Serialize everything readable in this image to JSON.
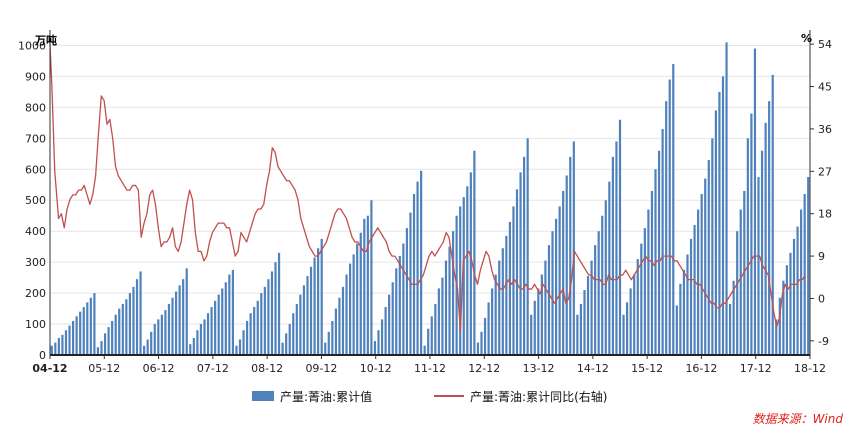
{
  "chart_data": {
    "type": "bar",
    "left_unit": "万吨",
    "right_unit": "%",
    "left_ticks": [
      "0",
      "100",
      "200",
      "300",
      "400",
      "500",
      "600",
      "700",
      "800",
      "900",
      "1000"
    ],
    "right_ticks": [
      "-9",
      "0",
      "9",
      "18",
      "27",
      "36",
      "45",
      "54"
    ],
    "ylim_left": [
      0,
      1050
    ],
    "ylim_right": [
      -12,
      57
    ],
    "x_tick_labels": [
      "04-12",
      "05-12",
      "06-12",
      "07-12",
      "08-12",
      "09-12",
      "10-12",
      "11-12",
      "12-12",
      "13-12",
      "14-12",
      "15-12",
      "16-12",
      "17-12",
      "18-12"
    ],
    "grid": true,
    "legend_position": "bottom",
    "series": [
      {
        "name": "产量:菁油:累计值",
        "kind": "bar",
        "axis": "left",
        "color": "#4f81bd",
        "values": [
          30,
          40,
          55,
          65,
          80,
          95,
          110,
          125,
          140,
          155,
          170,
          185,
          200,
          25,
          45,
          70,
          90,
          110,
          130,
          150,
          165,
          180,
          200,
          220,
          245,
          270,
          30,
          50,
          75,
          100,
          115,
          130,
          145,
          165,
          185,
          205,
          225,
          245,
          280,
          35,
          55,
          80,
          100,
          115,
          135,
          155,
          175,
          195,
          215,
          235,
          260,
          275,
          30,
          50,
          80,
          110,
          135,
          155,
          175,
          200,
          220,
          245,
          270,
          300,
          330,
          40,
          70,
          100,
          135,
          165,
          195,
          225,
          255,
          285,
          315,
          345,
          375,
          40,
          75,
          110,
          150,
          185,
          220,
          260,
          295,
          325,
          360,
          395,
          440,
          450,
          500,
          45,
          80,
          115,
          155,
          195,
          235,
          280,
          320,
          360,
          410,
          460,
          520,
          560,
          595,
          30,
          85,
          125,
          165,
          215,
          250,
          305,
          350,
          400,
          450,
          480,
          510,
          545,
          590,
          660,
          40,
          75,
          120,
          170,
          215,
          260,
          305,
          345,
          385,
          430,
          480,
          535,
          590,
          640,
          700,
          130,
          175,
          215,
          260,
          305,
          355,
          400,
          440,
          480,
          530,
          580,
          640,
          690,
          130,
          165,
          210,
          255,
          305,
          355,
          400,
          450,
          500,
          560,
          640,
          690,
          760,
          130,
          170,
          215,
          260,
          310,
          360,
          410,
          470,
          530,
          600,
          660,
          730,
          820,
          890,
          940,
          160,
          230,
          275,
          325,
          375,
          420,
          470,
          520,
          570,
          630,
          700,
          790,
          850,
          900,
          1010,
          165,
          240,
          400,
          470,
          530,
          700,
          780,
          990,
          575,
          660,
          750,
          820,
          905,
          115,
          185,
          240,
          290,
          330,
          375,
          415,
          470,
          520,
          575
        ]
      },
      {
        "name": "产量:菁油:累计同比(右轴)",
        "kind": "line",
        "axis": "right",
        "color": "#c0504d",
        "points": [
          [
            0,
            54
          ],
          [
            2,
            45
          ],
          [
            5,
            27
          ],
          [
            9,
            17
          ],
          [
            12,
            18
          ],
          [
            15,
            15
          ],
          [
            18,
            19
          ],
          [
            21,
            21
          ],
          [
            24,
            22
          ],
          [
            27,
            22
          ],
          [
            30,
            23
          ],
          [
            33,
            23
          ],
          [
            36,
            24
          ],
          [
            39,
            22
          ],
          [
            42,
            20
          ],
          [
            45,
            22
          ],
          [
            48,
            26
          ],
          [
            51,
            35
          ],
          [
            54,
            43
          ],
          [
            57,
            42
          ],
          [
            60,
            37
          ],
          [
            63,
            38
          ],
          [
            66,
            34
          ],
          [
            69,
            28
          ],
          [
            72,
            26
          ],
          [
            75,
            25
          ],
          [
            78,
            24
          ],
          [
            81,
            23
          ],
          [
            84,
            23
          ],
          [
            87,
            24
          ],
          [
            90,
            24
          ],
          [
            93,
            23
          ],
          [
            96,
            13
          ],
          [
            99,
            16
          ],
          [
            102,
            18
          ],
          [
            105,
            22
          ],
          [
            108,
            23
          ],
          [
            111,
            20
          ],
          [
            114,
            15
          ],
          [
            117,
            11
          ],
          [
            120,
            12
          ],
          [
            123,
            12
          ],
          [
            126,
            13
          ],
          [
            129,
            15
          ],
          [
            132,
            11
          ],
          [
            135,
            10
          ],
          [
            138,
            12
          ],
          [
            141,
            16
          ],
          [
            144,
            20
          ],
          [
            147,
            23
          ],
          [
            150,
            21
          ],
          [
            153,
            14
          ],
          [
            156,
            10
          ],
          [
            159,
            10
          ],
          [
            162,
            8
          ],
          [
            165,
            9
          ],
          [
            168,
            12
          ],
          [
            171,
            14
          ],
          [
            174,
            15
          ],
          [
            177,
            16
          ],
          [
            180,
            16
          ],
          [
            183,
            16
          ],
          [
            186,
            15
          ],
          [
            189,
            15
          ],
          [
            192,
            12
          ],
          [
            195,
            9
          ],
          [
            198,
            10
          ],
          [
            201,
            14
          ],
          [
            204,
            13
          ],
          [
            207,
            12
          ],
          [
            210,
            14
          ],
          [
            213,
            16
          ],
          [
            216,
            18
          ],
          [
            219,
            19
          ],
          [
            222,
            19
          ],
          [
            225,
            20
          ],
          [
            228,
            24
          ],
          [
            231,
            27
          ],
          [
            234,
            32
          ],
          [
            237,
            31
          ],
          [
            240,
            28
          ],
          [
            243,
            27
          ],
          [
            246,
            26
          ],
          [
            249,
            25
          ],
          [
            252,
            25
          ],
          [
            255,
            24
          ],
          [
            258,
            23
          ],
          [
            261,
            21
          ],
          [
            264,
            17
          ],
          [
            267,
            15
          ],
          [
            270,
            13
          ],
          [
            273,
            11
          ],
          [
            276,
            10
          ],
          [
            279,
            9
          ],
          [
            282,
            9
          ],
          [
            285,
            10
          ],
          [
            288,
            11
          ],
          [
            291,
            12
          ],
          [
            294,
            14
          ],
          [
            297,
            16
          ],
          [
            300,
            18
          ],
          [
            303,
            19
          ],
          [
            306,
            19
          ],
          [
            309,
            18
          ],
          [
            312,
            17
          ],
          [
            315,
            15
          ],
          [
            318,
            13
          ],
          [
            321,
            12
          ],
          [
            324,
            12
          ],
          [
            327,
            11
          ],
          [
            330,
            10
          ],
          [
            333,
            10
          ],
          [
            336,
            12
          ],
          [
            339,
            13
          ],
          [
            342,
            14
          ],
          [
            345,
            15
          ],
          [
            348,
            14
          ],
          [
            351,
            13
          ],
          [
            354,
            12
          ],
          [
            357,
            10
          ],
          [
            360,
            9
          ],
          [
            363,
            9
          ],
          [
            366,
            8
          ],
          [
            369,
            7
          ],
          [
            372,
            6
          ],
          [
            375,
            5
          ],
          [
            378,
            4
          ],
          [
            381,
            3
          ],
          [
            384,
            3
          ],
          [
            387,
            3
          ],
          [
            390,
            4
          ],
          [
            393,
            5
          ],
          [
            396,
            7
          ],
          [
            399,
            9
          ],
          [
            402,
            10
          ],
          [
            405,
            9
          ],
          [
            408,
            10
          ],
          [
            411,
            11
          ],
          [
            414,
            12
          ],
          [
            417,
            14
          ],
          [
            420,
            13
          ],
          [
            423,
            9
          ],
          [
            426,
            5
          ],
          [
            429,
            2
          ],
          [
            432,
            -7
          ],
          [
            435,
            8
          ],
          [
            438,
            9
          ],
          [
            441,
            10
          ],
          [
            444,
            8
          ],
          [
            447,
            5
          ],
          [
            450,
            3
          ],
          [
            453,
            6
          ],
          [
            456,
            8
          ],
          [
            459,
            10
          ],
          [
            462,
            9
          ],
          [
            465,
            6
          ],
          [
            468,
            4
          ],
          [
            471,
            3
          ],
          [
            474,
            2
          ],
          [
            477,
            2
          ],
          [
            480,
            3
          ],
          [
            483,
            4
          ],
          [
            486,
            3
          ],
          [
            489,
            4
          ],
          [
            492,
            3
          ],
          [
            495,
            2
          ],
          [
            498,
            2
          ],
          [
            501,
            3
          ],
          [
            504,
            2
          ],
          [
            507,
            2
          ],
          [
            510,
            3
          ],
          [
            513,
            2
          ],
          [
            516,
            1
          ],
          [
            519,
            3
          ],
          [
            522,
            2
          ],
          [
            525,
            1
          ],
          [
            528,
            0
          ],
          [
            531,
            -1
          ],
          [
            534,
            0
          ],
          [
            537,
            1
          ],
          [
            540,
            2
          ],
          [
            543,
            -1
          ],
          [
            546,
            0
          ],
          [
            549,
            4
          ],
          [
            552,
            10
          ],
          [
            555,
            9
          ],
          [
            558,
            8
          ],
          [
            561,
            7
          ],
          [
            564,
            6
          ],
          [
            567,
            5
          ],
          [
            570,
            5
          ],
          [
            573,
            4
          ],
          [
            576,
            4
          ],
          [
            579,
            4
          ],
          [
            582,
            3
          ],
          [
            585,
            3
          ],
          [
            588,
            5
          ],
          [
            591,
            4
          ],
          [
            594,
            4
          ],
          [
            597,
            4
          ],
          [
            600,
            5
          ],
          [
            603,
            5
          ],
          [
            606,
            6
          ],
          [
            609,
            5
          ],
          [
            612,
            4
          ],
          [
            615,
            5
          ],
          [
            618,
            6
          ],
          [
            621,
            7
          ],
          [
            624,
            8
          ],
          [
            627,
            9
          ],
          [
            630,
            8
          ],
          [
            633,
            8
          ],
          [
            636,
            7
          ],
          [
            639,
            8
          ],
          [
            642,
            8
          ],
          [
            645,
            9
          ],
          [
            648,
            9
          ],
          [
            651,
            9
          ],
          [
            654,
            9
          ],
          [
            657,
            8
          ],
          [
            660,
            8
          ],
          [
            663,
            7
          ],
          [
            666,
            6
          ],
          [
            669,
            5
          ],
          [
            672,
            4
          ],
          [
            675,
            4
          ],
          [
            678,
            4
          ],
          [
            681,
            3
          ],
          [
            684,
            3
          ],
          [
            687,
            2
          ],
          [
            690,
            1
          ],
          [
            693,
            0
          ],
          [
            696,
            -1
          ],
          [
            699,
            -1
          ],
          [
            702,
            -2
          ],
          [
            705,
            -2
          ],
          [
            708,
            -1
          ],
          [
            711,
            -1
          ],
          [
            714,
            0
          ],
          [
            717,
            1
          ],
          [
            720,
            2
          ],
          [
            723,
            3
          ],
          [
            726,
            4
          ],
          [
            729,
            5
          ],
          [
            732,
            6
          ],
          [
            735,
            7
          ],
          [
            738,
            8
          ],
          [
            741,
            9
          ],
          [
            744,
            9
          ],
          [
            747,
            9
          ],
          [
            750,
            7
          ],
          [
            753,
            6
          ],
          [
            756,
            5
          ],
          [
            759,
            1
          ],
          [
            762,
            -3
          ],
          [
            765,
            -6
          ],
          [
            768,
            -4
          ],
          [
            771,
            1
          ],
          [
            774,
            3
          ],
          [
            777,
            2
          ],
          [
            780,
            3
          ],
          [
            783,
            3
          ],
          [
            786,
            3
          ],
          [
            789,
            4
          ],
          [
            792,
            4
          ],
          [
            795,
            5
          ]
        ]
      }
    ]
  },
  "source_text": "数据来源：Wind"
}
